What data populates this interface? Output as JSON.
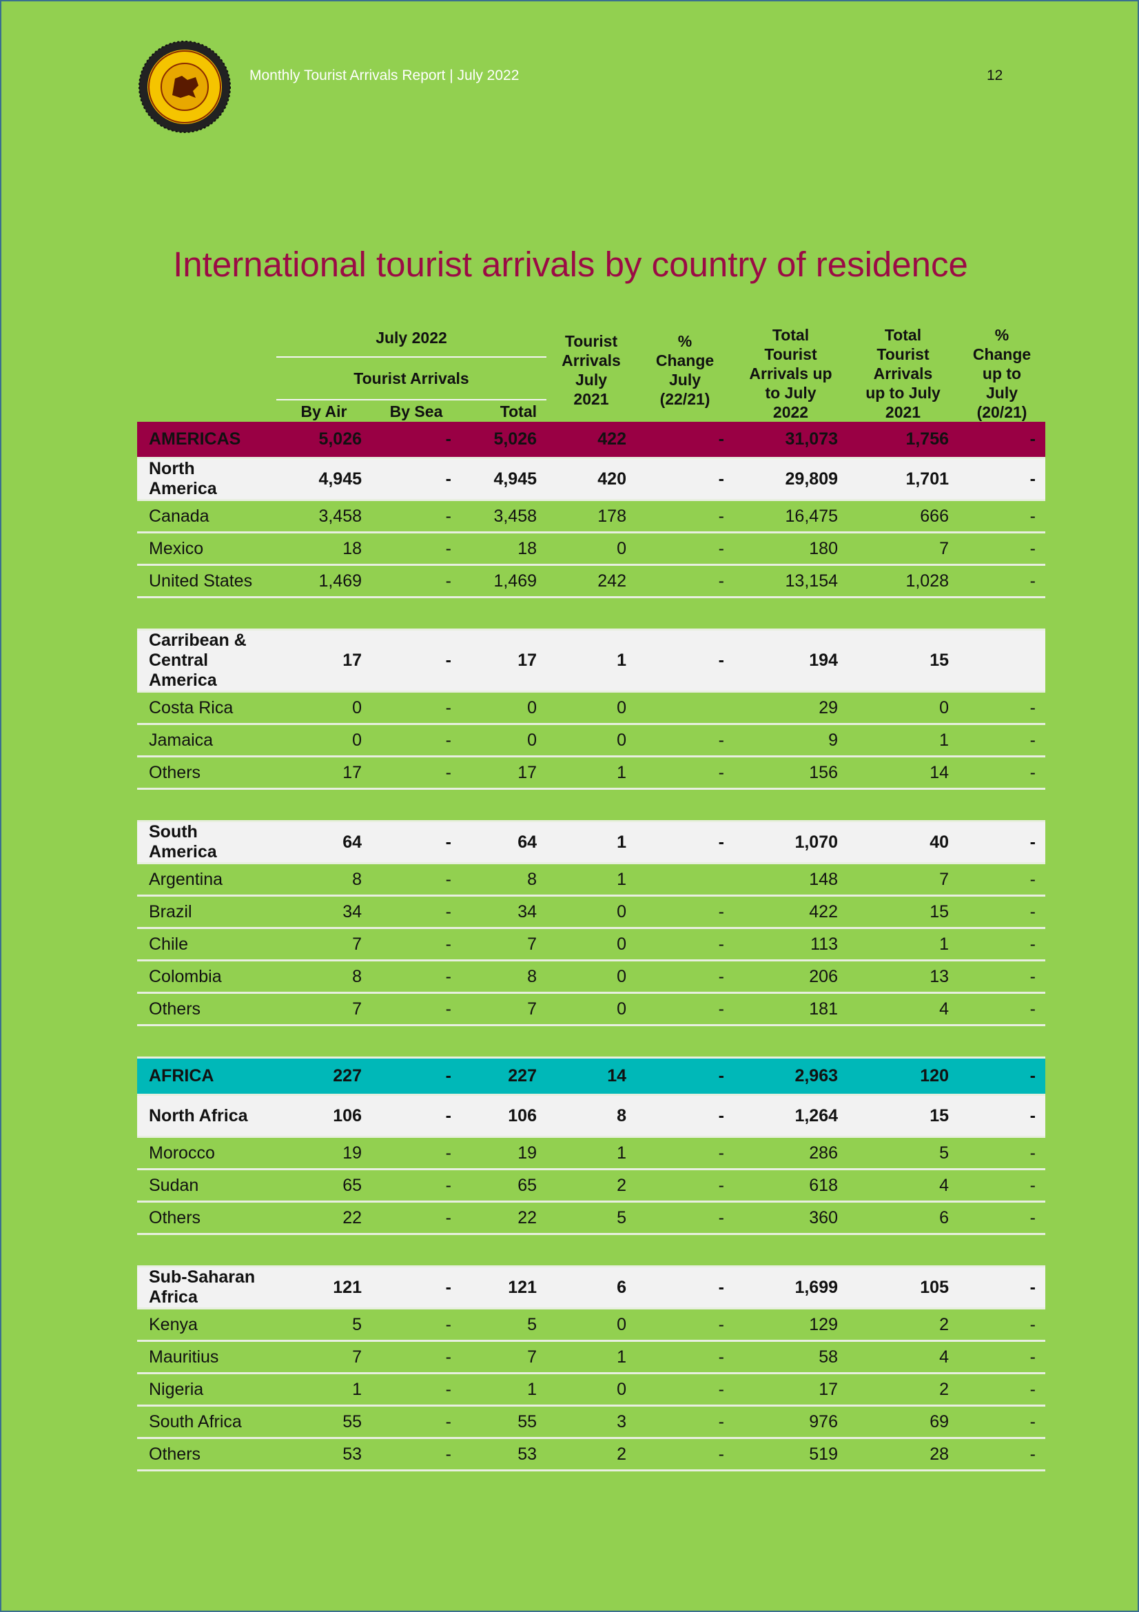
{
  "header": {
    "report": "Monthly Tourist Arrivals Report | July 2022",
    "page": "12"
  },
  "title": "International tourist arrivals by country of residence",
  "table": {
    "header": {
      "group": "July  2022",
      "subgroup": "Tourist Arrivals",
      "columns": [
        "By Air",
        "By Sea",
        "Total",
        "Tourist\nArrivals\nJuly\n2021",
        "%\nChange\nJuly\n(22/21)",
        "Total\nTourist\nArrivals up\nto July\n2022",
        "Total\nTourist\nArrivals\nup to July\n2021",
        "%\nChange\nup to\nJuly\n(20/21)"
      ]
    },
    "regions": [
      {
        "name": "AMERICAS",
        "cells": [
          "5,026",
          "-",
          "5,026",
          "422",
          "-",
          "31,073",
          "1,756",
          "-"
        ],
        "subregions": [
          {
            "name": "North\nAmerica",
            "cells": [
              "4,945",
              "-",
              "4,945",
              "420",
              "-",
              "29,809",
              "1,701",
              "-"
            ],
            "countries": [
              {
                "name": "Canada",
                "cells": [
                  "3,458",
                  "-",
                  "3,458",
                  "178",
                  "-",
                  "16,475",
                  "666",
                  "-"
                ]
              },
              {
                "name": "Mexico",
                "cells": [
                  "18",
                  "-",
                  "18",
                  "0",
                  "-",
                  "180",
                  "7",
                  "-"
                ]
              },
              {
                "name": "United States",
                "cells": [
                  "1,469",
                  "-",
                  "1,469",
                  "242",
                  "-",
                  "13,154",
                  "1,028",
                  "-"
                ]
              }
            ]
          },
          {
            "name": "Carribean &\nCentral\nAmerica",
            "cells": [
              "17",
              "-",
              "17",
              "1",
              "-",
              "194",
              "15",
              null
            ],
            "countries": [
              {
                "name": "Costa Rica",
                "cells": [
                  "0",
                  "-",
                  "0",
                  "0",
                  null,
                  "29",
                  "0",
                  "-"
                ]
              },
              {
                "name": "Jamaica",
                "cells": [
                  "0",
                  "-",
                  "0",
                  "0",
                  "-",
                  "9",
                  "1",
                  "-"
                ]
              },
              {
                "name": "Others",
                "cells": [
                  "17",
                  "-",
                  "17",
                  "1",
                  "-",
                  "156",
                  "14",
                  "-"
                ]
              }
            ]
          },
          {
            "name": "South\nAmerica",
            "cells": [
              "64",
              "-",
              "64",
              "1",
              "-",
              "1,070",
              "40",
              "-"
            ],
            "countries": [
              {
                "name": "Argentina",
                "cells": [
                  "8",
                  "-",
                  "8",
                  "1",
                  null,
                  "148",
                  "7",
                  "-"
                ]
              },
              {
                "name": "Brazil",
                "cells": [
                  "34",
                  "-",
                  "34",
                  "0",
                  "-",
                  "422",
                  "15",
                  "-"
                ]
              },
              {
                "name": "Chile",
                "cells": [
                  "7",
                  "-",
                  "7",
                  "0",
                  "-",
                  "113",
                  "1",
                  "-"
                ]
              },
              {
                "name": "Colombia",
                "cells": [
                  "8",
                  "-",
                  "8",
                  "0",
                  "-",
                  "206",
                  "13",
                  "-"
                ]
              },
              {
                "name": "Others",
                "cells": [
                  "7",
                  "-",
                  "7",
                  "0",
                  "-",
                  "181",
                  "4",
                  "-"
                ]
              }
            ]
          }
        ]
      },
      {
        "name": "AFRICA",
        "cells": [
          "227",
          "-",
          "227",
          "14",
          "-",
          "2,963",
          "120",
          "-"
        ],
        "subregions": [
          {
            "name": "North Africa",
            "cells": [
              "106",
              "-",
              "106",
              "8",
              "-",
              "1,264",
              "15",
              "-"
            ],
            "countries": [
              {
                "name": "Morocco",
                "cells": [
                  "19",
                  "-",
                  "19",
                  "1",
                  "-",
                  "286",
                  "5",
                  "-"
                ]
              },
              {
                "name": "Sudan",
                "cells": [
                  "65",
                  "-",
                  "65",
                  "2",
                  "-",
                  "618",
                  "4",
                  "-"
                ]
              },
              {
                "name": "Others",
                "cells": [
                  "22",
                  "-",
                  "22",
                  "5",
                  "-",
                  "360",
                  "6",
                  "-"
                ]
              }
            ]
          },
          {
            "name": "Sub-Saharan\nAfrica",
            "cells": [
              "121",
              "-",
              "121",
              "6",
              "-",
              "1,699",
              "105",
              "-"
            ],
            "countries": [
              {
                "name": "Kenya",
                "cells": [
                  "5",
                  "-",
                  "5",
                  "0",
                  "-",
                  "129",
                  "2",
                  "-"
                ]
              },
              {
                "name": "Mauritius",
                "cells": [
                  "7",
                  "-",
                  "7",
                  "1",
                  "-",
                  "58",
                  "4",
                  "-"
                ]
              },
              {
                "name": "Nigeria",
                "cells": [
                  "1",
                  "-",
                  "1",
                  "0",
                  "-",
                  "17",
                  "2",
                  "-"
                ]
              },
              {
                "name": "South Africa",
                "cells": [
                  "55",
                  "-",
                  "55",
                  "3",
                  "-",
                  "976",
                  "69",
                  "-"
                ]
              },
              {
                "name": "Others",
                "cells": [
                  "53",
                  "-",
                  "53",
                  "2",
                  "-",
                  "519",
                  "28",
                  "-"
                ]
              }
            ]
          }
        ]
      }
    ]
  }
}
